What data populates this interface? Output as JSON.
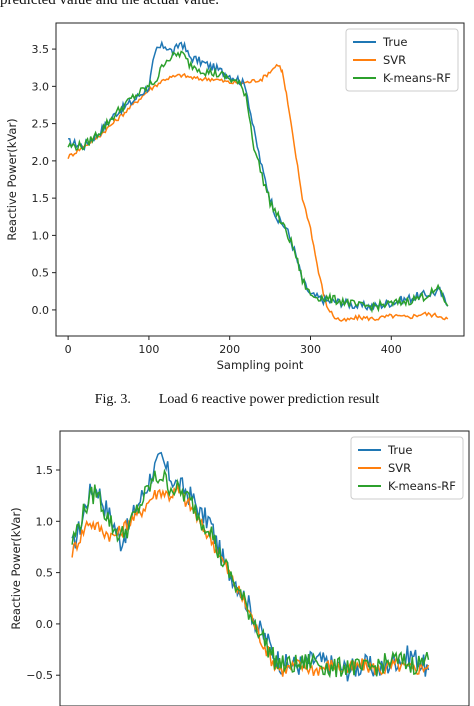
{
  "top_text": "predicted value and the actual value.",
  "caption": {
    "fig_label": "Fig. 3.",
    "text": "Load 6 reactive power prediction result"
  },
  "colors": {
    "True": "#1f77b4",
    "SVR": "#ff7f0e",
    "K-means-RF": "#2ca02c"
  },
  "chart_data": [
    {
      "type": "line",
      "title": "",
      "xlabel": "Sampling point",
      "ylabel": "Reactive Power(kVar)",
      "xlim": [
        -15,
        490
      ],
      "ylim": [
        -0.35,
        3.85
      ],
      "xticks": [
        0,
        100,
        200,
        300,
        400
      ],
      "yticks": [
        0.0,
        0.5,
        1.0,
        1.5,
        2.0,
        2.5,
        3.0,
        3.5
      ],
      "ytick_labels": [
        "0.0",
        "0.5",
        "1.0",
        "1.5",
        "2.0",
        "2.5",
        "3.0",
        "3.5"
      ],
      "legend": "top-right",
      "grid": false,
      "series": [
        {
          "name": "True",
          "points": [
            [
              0,
              2.25
            ],
            [
              20,
              2.2
            ],
            [
              40,
              2.4
            ],
            [
              60,
              2.65
            ],
            [
              80,
              2.8
            ],
            [
              100,
              3.0
            ],
            [
              105,
              3.3
            ],
            [
              110,
              3.5
            ],
            [
              120,
              3.55
            ],
            [
              130,
              3.45
            ],
            [
              140,
              3.6
            ],
            [
              150,
              3.4
            ],
            [
              170,
              3.3
            ],
            [
              190,
              3.2
            ],
            [
              210,
              3.1
            ],
            [
              220,
              3.0
            ],
            [
              230,
              2.4
            ],
            [
              240,
              1.9
            ],
            [
              250,
              1.5
            ],
            [
              260,
              1.2
            ],
            [
              270,
              1.1
            ],
            [
              280,
              0.8
            ],
            [
              290,
              0.4
            ],
            [
              300,
              0.2
            ],
            [
              320,
              0.12
            ],
            [
              340,
              0.1
            ],
            [
              360,
              0.05
            ],
            [
              380,
              0.05
            ],
            [
              400,
              0.1
            ],
            [
              420,
              0.15
            ],
            [
              440,
              0.2
            ],
            [
              460,
              0.25
            ],
            [
              470,
              0.05
            ]
          ]
        },
        {
          "name": "SVR",
          "points": [
            [
              0,
              2.05
            ],
            [
              20,
              2.2
            ],
            [
              40,
              2.35
            ],
            [
              60,
              2.55
            ],
            [
              80,
              2.75
            ],
            [
              100,
              2.95
            ],
            [
              120,
              3.1
            ],
            [
              140,
              3.15
            ],
            [
              160,
              3.1
            ],
            [
              180,
              3.1
            ],
            [
              200,
              3.05
            ],
            [
              220,
              3.05
            ],
            [
              240,
              3.1
            ],
            [
              250,
              3.2
            ],
            [
              260,
              3.3
            ],
            [
              265,
              3.2
            ],
            [
              270,
              2.9
            ],
            [
              280,
              2.2
            ],
            [
              290,
              1.5
            ],
            [
              300,
              1.1
            ],
            [
              310,
              0.5
            ],
            [
              320,
              0.05
            ],
            [
              330,
              -0.1
            ],
            [
              340,
              -0.15
            ],
            [
              360,
              -0.1
            ],
            [
              380,
              -0.12
            ],
            [
              400,
              -0.08
            ],
            [
              420,
              -0.1
            ],
            [
              440,
              -0.05
            ],
            [
              460,
              -0.08
            ],
            [
              470,
              -0.12
            ]
          ]
        },
        {
          "name": "K-means-RF",
          "points": [
            [
              0,
              2.2
            ],
            [
              20,
              2.2
            ],
            [
              40,
              2.4
            ],
            [
              60,
              2.65
            ],
            [
              80,
              2.85
            ],
            [
              100,
              3.0
            ],
            [
              110,
              3.1
            ],
            [
              120,
              3.35
            ],
            [
              130,
              3.4
            ],
            [
              140,
              3.45
            ],
            [
              150,
              3.3
            ],
            [
              170,
              3.2
            ],
            [
              190,
              3.15
            ],
            [
              210,
              3.05
            ],
            [
              220,
              2.9
            ],
            [
              230,
              2.2
            ],
            [
              240,
              1.8
            ],
            [
              250,
              1.45
            ],
            [
              260,
              1.25
            ],
            [
              270,
              1.05
            ],
            [
              280,
              0.8
            ],
            [
              290,
              0.4
            ],
            [
              300,
              0.2
            ],
            [
              320,
              0.15
            ],
            [
              340,
              0.12
            ],
            [
              360,
              0.05
            ],
            [
              380,
              0.05
            ],
            [
              400,
              0.08
            ],
            [
              420,
              0.12
            ],
            [
              440,
              0.18
            ],
            [
              460,
              0.28
            ],
            [
              470,
              0.05
            ]
          ]
        }
      ]
    },
    {
      "type": "line",
      "title": "",
      "xlabel": "",
      "ylabel": "Reactive Power(kVar)",
      "xlim": [
        -15,
        490
      ],
      "ylim": [
        -0.8,
        1.88
      ],
      "xticks": [],
      "yticks": [
        -0.5,
        0.0,
        0.5,
        1.0,
        1.5
      ],
      "ytick_labels": [
        "−0.5",
        "0.0",
        "0.5",
        "1.0",
        "1.5"
      ],
      "legend": "top-right",
      "grid": false,
      "series": [
        {
          "name": "True",
          "points": [
            [
              0,
              0.75
            ],
            [
              10,
              0.95
            ],
            [
              20,
              1.25
            ],
            [
              30,
              1.35
            ],
            [
              40,
              1.15
            ],
            [
              50,
              1.0
            ],
            [
              60,
              0.8
            ],
            [
              70,
              0.95
            ],
            [
              80,
              1.15
            ],
            [
              90,
              1.3
            ],
            [
              100,
              1.5
            ],
            [
              110,
              1.6
            ],
            [
              120,
              1.45
            ],
            [
              130,
              1.35
            ],
            [
              140,
              1.3
            ],
            [
              150,
              1.2
            ],
            [
              160,
              1.05
            ],
            [
              170,
              1.0
            ],
            [
              180,
              0.75
            ],
            [
              190,
              0.55
            ],
            [
              200,
              0.45
            ],
            [
              210,
              0.3
            ],
            [
              220,
              0.15
            ],
            [
              230,
              -0.05
            ],
            [
              240,
              -0.15
            ],
            [
              250,
              -0.3
            ],
            [
              260,
              -0.4
            ],
            [
              280,
              -0.4
            ],
            [
              300,
              -0.35
            ],
            [
              320,
              -0.4
            ],
            [
              340,
              -0.45
            ],
            [
              360,
              -0.4
            ],
            [
              380,
              -0.45
            ],
            [
              400,
              -0.35
            ],
            [
              420,
              -0.3
            ],
            [
              440,
              -0.45
            ]
          ]
        },
        {
          "name": "SVR",
          "points": [
            [
              0,
              0.7
            ],
            [
              10,
              0.85
            ],
            [
              20,
              1.0
            ],
            [
              30,
              0.95
            ],
            [
              40,
              0.9
            ],
            [
              50,
              0.85
            ],
            [
              60,
              0.9
            ],
            [
              70,
              1.0
            ],
            [
              80,
              1.05
            ],
            [
              90,
              1.15
            ],
            [
              100,
              1.25
            ],
            [
              110,
              1.3
            ],
            [
              120,
              1.25
            ],
            [
              130,
              1.3
            ],
            [
              140,
              1.2
            ],
            [
              150,
              1.1
            ],
            [
              160,
              0.95
            ],
            [
              170,
              0.85
            ],
            [
              180,
              0.7
            ],
            [
              190,
              0.55
            ],
            [
              200,
              0.4
            ],
            [
              210,
              0.25
            ],
            [
              220,
              0.1
            ],
            [
              230,
              -0.1
            ],
            [
              240,
              -0.25
            ],
            [
              250,
              -0.4
            ],
            [
              260,
              -0.45
            ],
            [
              280,
              -0.4
            ],
            [
              300,
              -0.45
            ],
            [
              320,
              -0.4
            ],
            [
              340,
              -0.45
            ],
            [
              360,
              -0.4
            ],
            [
              380,
              -0.45
            ],
            [
              400,
              -0.4
            ],
            [
              420,
              -0.45
            ],
            [
              440,
              -0.4
            ]
          ]
        },
        {
          "name": "K-means-RF",
          "points": [
            [
              0,
              0.8
            ],
            [
              10,
              1.0
            ],
            [
              20,
              1.2
            ],
            [
              30,
              1.3
            ],
            [
              40,
              1.1
            ],
            [
              50,
              0.95
            ],
            [
              60,
              0.85
            ],
            [
              70,
              0.95
            ],
            [
              80,
              1.1
            ],
            [
              90,
              1.25
            ],
            [
              100,
              1.4
            ],
            [
              110,
              1.45
            ],
            [
              120,
              1.35
            ],
            [
              130,
              1.3
            ],
            [
              140,
              1.25
            ],
            [
              150,
              1.15
            ],
            [
              160,
              1.0
            ],
            [
              170,
              0.95
            ],
            [
              180,
              0.7
            ],
            [
              190,
              0.55
            ],
            [
              200,
              0.4
            ],
            [
              210,
              0.25
            ],
            [
              220,
              0.1
            ],
            [
              230,
              -0.05
            ],
            [
              240,
              -0.2
            ],
            [
              250,
              -0.35
            ],
            [
              260,
              -0.4
            ],
            [
              280,
              -0.4
            ],
            [
              300,
              -0.35
            ],
            [
              320,
              -0.45
            ],
            [
              340,
              -0.4
            ],
            [
              360,
              -0.45
            ],
            [
              380,
              -0.4
            ],
            [
              400,
              -0.35
            ],
            [
              420,
              -0.4
            ],
            [
              440,
              -0.35
            ]
          ]
        }
      ]
    }
  ]
}
